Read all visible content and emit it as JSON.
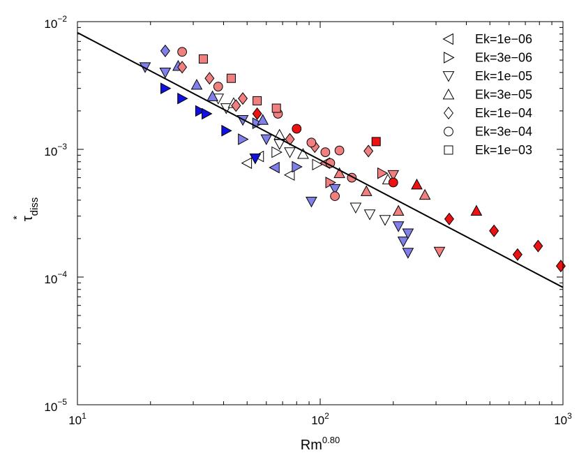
{
  "chart_data": {
    "type": "scatter",
    "xscale": "log",
    "yscale": "log",
    "xlim": [
      10,
      1000
    ],
    "ylim": [
      1e-05,
      0.01
    ],
    "xlabel": {
      "base": "Rm",
      "exponent": "0.80"
    },
    "ylabel": {
      "base": "τ",
      "superscript": "*",
      "subscript": "diss"
    },
    "x_ticks": [
      {
        "value": 10,
        "base": "10",
        "exp": "1"
      },
      {
        "value": 100,
        "base": "10",
        "exp": "2"
      },
      {
        "value": 1000,
        "base": "10",
        "exp": "3"
      }
    ],
    "y_ticks": [
      {
        "value": 1e-05,
        "base": "10",
        "exp": "−5"
      },
      {
        "value": 0.0001,
        "base": "10",
        "exp": "−4"
      },
      {
        "value": 0.001,
        "base": "10",
        "exp": "−3"
      },
      {
        "value": 0.01,
        "base": "10",
        "exp": "−2"
      }
    ],
    "fit_line": {
      "x": [
        10,
        1000
      ],
      "y": [
        0.0082,
        8.3e-05
      ]
    },
    "color_scale": {
      "dark_blue": "#1010e0",
      "light_blue": "#8080e8",
      "white": "#ffffff",
      "light_red": "#f08080",
      "red": "#ee1111"
    },
    "legend": {
      "position": "top-right",
      "entries": [
        {
          "label": "Ek=1e−06",
          "marker": "triangle-left"
        },
        {
          "label": "Ek=3e−06",
          "marker": "triangle-right"
        },
        {
          "label": "Ek=1e−05",
          "marker": "triangle-down"
        },
        {
          "label": "Ek=3e−05",
          "marker": "triangle-up"
        },
        {
          "label": "Ek=1e−04",
          "marker": "diamond"
        },
        {
          "label": "Ek=3e−04",
          "marker": "circle"
        },
        {
          "label": "Ek=1e−03",
          "marker": "square"
        }
      ]
    },
    "series": [
      {
        "name": "Ek=1e−06",
        "marker": "triangle-left",
        "points": [
          {
            "x": 50,
            "y": 0.00078,
            "color": "#ffffff"
          },
          {
            "x": 56,
            "y": 0.00088,
            "color": "#ffffff"
          },
          {
            "x": 65,
            "y": 0.00072,
            "color": "#8080e8"
          },
          {
            "x": 75,
            "y": 0.00063,
            "color": "#ffffff"
          },
          {
            "x": 105,
            "y": 0.00078,
            "color": "#f08080"
          }
        ]
      },
      {
        "name": "Ek=3e−06",
        "marker": "triangle-right",
        "points": [
          {
            "x": 23,
            "y": 0.003,
            "color": "#1010e0"
          },
          {
            "x": 27,
            "y": 0.0025,
            "color": "#1010e0"
          },
          {
            "x": 32,
            "y": 0.002,
            "color": "#1010e0"
          },
          {
            "x": 34,
            "y": 0.0019,
            "color": "#1010e0"
          },
          {
            "x": 41,
            "y": 0.0014,
            "color": "#1010e0"
          },
          {
            "x": 48,
            "y": 0.0012,
            "color": "#8080e8"
          },
          {
            "x": 55,
            "y": 0.0016,
            "color": "#8080e8"
          },
          {
            "x": 66,
            "y": 0.00095,
            "color": "#ffffff"
          },
          {
            "x": 80,
            "y": 0.00073,
            "color": "#8080e8"
          },
          {
            "x": 97,
            "y": 0.00076,
            "color": "#ffffff"
          },
          {
            "x": 110,
            "y": 0.00055,
            "color": "#f08080"
          },
          {
            "x": 180,
            "y": 0.00065,
            "color": "#f08080"
          }
        ]
      },
      {
        "name": "Ek=1e−05",
        "marker": "triangle-down",
        "points": [
          {
            "x": 19,
            "y": 0.0044,
            "color": "#8080e8"
          },
          {
            "x": 23,
            "y": 0.004,
            "color": "#8080e8"
          },
          {
            "x": 38,
            "y": 0.0025,
            "color": "#ffffff"
          },
          {
            "x": 41,
            "y": 0.0021,
            "color": "#ffffff"
          },
          {
            "x": 48,
            "y": 0.0017,
            "color": "#8080e8"
          },
          {
            "x": 54,
            "y": 0.00085,
            "color": "#1010e0"
          },
          {
            "x": 60,
            "y": 0.0012,
            "color": "#8080e8"
          },
          {
            "x": 68,
            "y": 0.0011,
            "color": "#ffffff"
          },
          {
            "x": 75,
            "y": 0.00095,
            "color": "#ffffff"
          },
          {
            "x": 92,
            "y": 0.00039,
            "color": "#8080e8"
          },
          {
            "x": 115,
            "y": 0.00049,
            "color": "#8080e8"
          },
          {
            "x": 140,
            "y": 0.00035,
            "color": "#ffffff"
          },
          {
            "x": 160,
            "y": 0.00031,
            "color": "#ffffff"
          },
          {
            "x": 185,
            "y": 0.00028,
            "color": "#ffffff"
          },
          {
            "x": 200,
            "y": 0.00063,
            "color": "#f08080"
          },
          {
            "x": 210,
            "y": 0.00025,
            "color": "#8080e8"
          },
          {
            "x": 220,
            "y": 0.00019,
            "color": "#8080e8"
          },
          {
            "x": 230,
            "y": 0.000155,
            "color": "#8080e8"
          },
          {
            "x": 230,
            "y": 0.00022,
            "color": "#8080e8"
          },
          {
            "x": 310,
            "y": 0.000158,
            "color": "#f08080"
          }
        ]
      },
      {
        "name": "Ek=3e−05",
        "marker": "triangle-up",
        "points": [
          {
            "x": 26,
            "y": 0.0045,
            "color": "#8080e8"
          },
          {
            "x": 31,
            "y": 0.0032,
            "color": "#8080e8"
          },
          {
            "x": 36,
            "y": 0.0026,
            "color": "#8080e8"
          },
          {
            "x": 44,
            "y": 0.0023,
            "color": "#ffffff"
          },
          {
            "x": 58,
            "y": 0.0017,
            "color": "#8080e8"
          },
          {
            "x": 68,
            "y": 0.0013,
            "color": "#ffffff"
          },
          {
            "x": 85,
            "y": 0.00092,
            "color": "#ffffff"
          },
          {
            "x": 120,
            "y": 0.00065,
            "color": "#f08080"
          },
          {
            "x": 155,
            "y": 0.00047,
            "color": "#f08080"
          },
          {
            "x": 190,
            "y": 0.00058,
            "color": "#ffffff"
          },
          {
            "x": 210,
            "y": 0.00033,
            "color": "#f08080"
          },
          {
            "x": 250,
            "y": 0.00053,
            "color": "#ee1111"
          },
          {
            "x": 270,
            "y": 0.00044,
            "color": "#f08080"
          },
          {
            "x": 440,
            "y": 0.00033,
            "color": "#ee1111"
          }
        ]
      },
      {
        "name": "Ek=1e−04",
        "marker": "diamond",
        "points": [
          {
            "x": 23,
            "y": 0.0059,
            "color": "#8080e8"
          },
          {
            "x": 27,
            "y": 0.0044,
            "color": "#f08080"
          },
          {
            "x": 35,
            "y": 0.0036,
            "color": "#f08080"
          },
          {
            "x": 45,
            "y": 0.0022,
            "color": "#f08080"
          },
          {
            "x": 48,
            "y": 0.0025,
            "color": "#f08080"
          },
          {
            "x": 55,
            "y": 0.0019,
            "color": "#ee1111"
          },
          {
            "x": 75,
            "y": 0.0012,
            "color": "#f08080"
          },
          {
            "x": 95,
            "y": 0.00105,
            "color": "#f08080"
          },
          {
            "x": 158,
            "y": 0.00097,
            "color": "#f08080"
          },
          {
            "x": 340,
            "y": 0.000285,
            "color": "#ee1111"
          },
          {
            "x": 520,
            "y": 0.00023,
            "color": "#ee1111"
          },
          {
            "x": 650,
            "y": 0.00015,
            "color": "#ee1111"
          },
          {
            "x": 790,
            "y": 0.000175,
            "color": "#ee1111"
          },
          {
            "x": 980,
            "y": 0.000122,
            "color": "#ee1111"
          }
        ]
      },
      {
        "name": "Ek=3e−04",
        "marker": "circle",
        "points": [
          {
            "x": 27,
            "y": 0.0058,
            "color": "#f08080"
          },
          {
            "x": 38,
            "y": 0.0031,
            "color": "#f08080"
          },
          {
            "x": 67,
            "y": 0.0019,
            "color": "#f08080"
          },
          {
            "x": 80,
            "y": 0.00145,
            "color": "#ee1111"
          },
          {
            "x": 92,
            "y": 0.00113,
            "color": "#f08080"
          },
          {
            "x": 105,
            "y": 0.00095,
            "color": "#f08080"
          },
          {
            "x": 110,
            "y": 0.00078,
            "color": "#f08080"
          },
          {
            "x": 115,
            "y": 0.00043,
            "color": "#f08080"
          },
          {
            "x": 120,
            "y": 0.00098,
            "color": "#f08080"
          },
          {
            "x": 135,
            "y": 0.0006,
            "color": "#f08080"
          },
          {
            "x": 200,
            "y": 0.00055,
            "color": "#ee1111"
          }
        ]
      },
      {
        "name": "Ek=1e−03",
        "marker": "square",
        "points": [
          {
            "x": 33,
            "y": 0.0051,
            "color": "#f08080"
          },
          {
            "x": 43,
            "y": 0.0036,
            "color": "#f08080"
          },
          {
            "x": 55,
            "y": 0.0024,
            "color": "#f08080"
          },
          {
            "x": 66,
            "y": 0.0021,
            "color": "#f08080"
          },
          {
            "x": 170,
            "y": 0.00115,
            "color": "#ee1111"
          }
        ]
      }
    ]
  }
}
